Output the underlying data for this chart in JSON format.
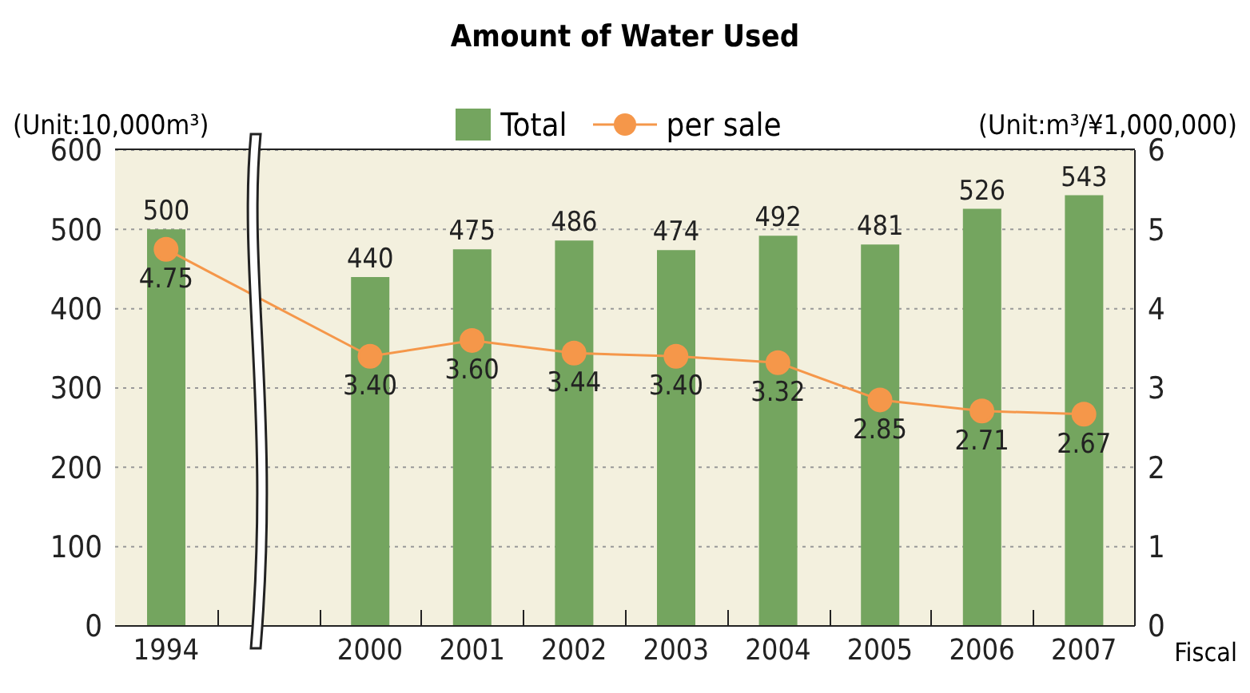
{
  "chart_data": {
    "type": "bar",
    "title": "Amount of Water Used",
    "xlabel": "Fiscal",
    "ylabel": "(Unit:10,000m³)",
    "y2label": "(Unit:m³/¥1,000,000)",
    "categories": [
      "1994",
      null,
      "2000",
      "2001",
      "2002",
      "2003",
      "2004",
      "2005",
      "2006",
      "2007"
    ],
    "series": [
      {
        "name": "Total",
        "color": "#74a55f",
        "values": [
          500,
          null,
          440,
          475,
          486,
          474,
          492,
          481,
          526,
          543
        ],
        "value_labels": [
          "500",
          null,
          "440",
          "475",
          "486",
          "474",
          "492",
          "481",
          "526",
          "543"
        ]
      },
      {
        "name": "per sale",
        "type": "line",
        "axis": "y2",
        "color": "#f5974a",
        "values": [
          4.75,
          null,
          3.4,
          3.6,
          3.44,
          3.4,
          3.32,
          2.85,
          2.71,
          2.67
        ],
        "value_labels": [
          "4.75",
          null,
          "3.40",
          "3.60",
          "3.44",
          "3.40",
          "3.32",
          "2.85",
          "2.71",
          "2.67"
        ]
      }
    ],
    "ylim": [
      0,
      600
    ],
    "yticks": [
      0,
      100,
      200,
      300,
      400,
      500,
      600
    ],
    "y2lim": [
      0,
      6
    ],
    "y2ticks": [
      0,
      1,
      2,
      3,
      4,
      5,
      6
    ],
    "grid": "y",
    "legend": "top",
    "marker": "circle"
  }
}
